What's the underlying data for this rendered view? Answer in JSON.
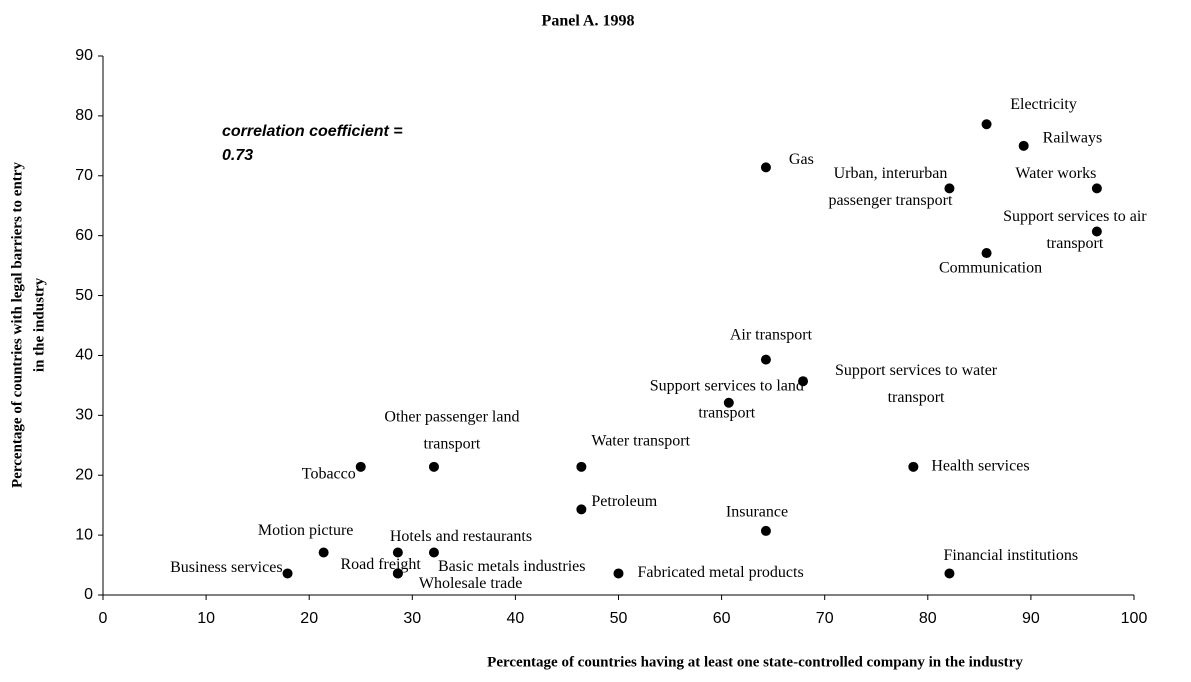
{
  "chart_data": {
    "type": "scatter",
    "title": "Panel A. 1998",
    "x_label": "Percentage of countries having at least one state-controlled company in the industry",
    "y_label": [
      "Percentage of countries with legal barriers to entry",
      "in the industry"
    ],
    "annotation": [
      "correlation coefficient =",
      "0.73"
    ],
    "labels": [
      "Business services",
      "Motion picture",
      "Hotels and restaurants",
      "Basic metals industries",
      "Road freight",
      "Wholesale trade",
      "Tobacco",
      [
        "Other passenger land",
        "transport"
      ],
      "Water transport",
      "Petroleum",
      "Fabricated metal products",
      "Insurance",
      "Financial institutions",
      "Health services",
      [
        "Support services to land",
        "transport"
      ],
      "Air transport",
      [
        "Support services to water",
        "transport"
      ],
      "Gas",
      "Electricity",
      "Railways",
      [
        "Urban, interurban",
        "passenger transport"
      ],
      "Water works",
      [
        "Support services to air",
        "transport"
      ],
      "Communication"
    ],
    "x": [
      17.9,
      21.4,
      28.6,
      32.1,
      28.6,
      28.6,
      25.0,
      32.1,
      46.4,
      46.4,
      50.0,
      64.3,
      82.1,
      78.6,
      60.7,
      64.3,
      67.9,
      64.3,
      85.7,
      89.3,
      82.1,
      96.4,
      96.4,
      85.7
    ],
    "values": [
      3.6,
      7.1,
      7.1,
      7.1,
      3.6,
      3.6,
      21.4,
      21.4,
      21.4,
      14.3,
      3.6,
      10.7,
      3.6,
      21.4,
      32.1,
      39.3,
      35.7,
      71.4,
      78.6,
      75.0,
      67.9,
      67.9,
      60.7,
      57.1
    ],
    "color": "#000000",
    "xlim": [
      0,
      100
    ],
    "xticks": [
      0,
      10,
      20,
      30,
      40,
      50,
      60,
      70,
      80,
      90,
      100
    ],
    "ylim": [
      0,
      90
    ],
    "yticks": [
      0,
      10,
      20,
      30,
      40,
      50,
      60,
      70,
      80,
      90
    ]
  }
}
